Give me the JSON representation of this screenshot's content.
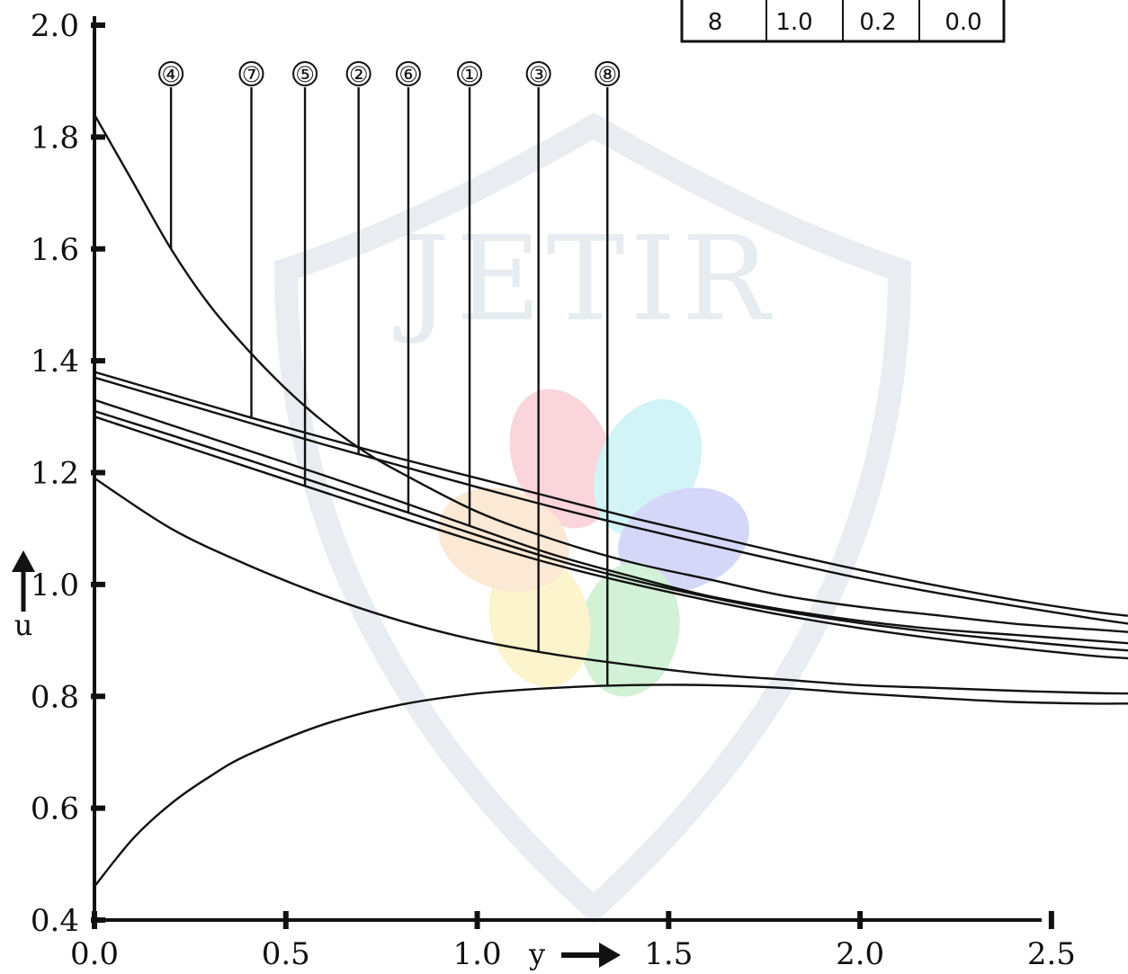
{
  "chart_data": {
    "type": "line",
    "title": "",
    "xlabel": "y",
    "ylabel": "u",
    "xlim": [
      0.0,
      2.7
    ],
    "ylim": [
      0.4,
      2.0
    ],
    "x_ticks": [
      0.0,
      0.5,
      1.0,
      1.5,
      2.0,
      2.5
    ],
    "x_tick_labels": [
      "0.0",
      "0.5",
      "1.0",
      "1.5",
      "2.0",
      "2.5"
    ],
    "y_ticks": [
      0.4,
      0.6,
      0.8,
      1.0,
      1.2,
      1.4,
      1.6,
      1.8,
      2.0
    ],
    "y_tick_labels": [
      "0.4",
      "0.6",
      "0.8",
      "1.0",
      "1.2",
      "1.4",
      "1.6",
      "1.8",
      "2.0"
    ],
    "grid": false,
    "watermark": "JETIR",
    "legend_table": {
      "position": "top-right",
      "visible_row": [
        "8",
        "1.0",
        "0.2",
        "0.0"
      ]
    },
    "series": [
      {
        "label": "①",
        "x": [
          0.0,
          0.2,
          0.4,
          0.6,
          0.8,
          1.0,
          1.2,
          1.4,
          1.6,
          1.8,
          2.0,
          2.2,
          2.4,
          2.6,
          2.7
        ],
        "y": [
          1.33,
          1.285,
          1.24,
          1.195,
          1.148,
          1.1,
          1.053,
          1.015,
          0.98,
          0.955,
          0.935,
          0.92,
          0.91,
          0.9,
          0.895
        ],
        "marker_x": 0.98
      },
      {
        "label": "②",
        "x": [
          0.0,
          0.2,
          0.4,
          0.6,
          0.8,
          1.0,
          1.2,
          1.4,
          1.6,
          1.8,
          2.0,
          2.2,
          2.4,
          2.6,
          2.7
        ],
        "y": [
          1.37,
          1.33,
          1.29,
          1.25,
          1.212,
          1.174,
          1.138,
          1.104,
          1.072,
          1.041,
          1.011,
          0.985,
          0.962,
          0.94,
          0.93
        ],
        "marker_x": 0.69
      },
      {
        "label": "③",
        "x": [
          0.0,
          0.2,
          0.4,
          0.6,
          0.8,
          1.0,
          1.2,
          1.4,
          1.6,
          1.8,
          2.0,
          2.2,
          2.4,
          2.6,
          2.7
        ],
        "y": [
          1.19,
          1.1,
          1.035,
          0.98,
          0.935,
          0.9,
          0.875,
          0.856,
          0.84,
          0.83,
          0.82,
          0.815,
          0.81,
          0.806,
          0.805
        ],
        "marker_x": 1.16
      },
      {
        "label": "④",
        "x": [
          0.0,
          0.1,
          0.2,
          0.3,
          0.4,
          0.5,
          0.6,
          0.7,
          0.8,
          1.0,
          1.2,
          1.4,
          1.6,
          1.8,
          2.0,
          2.2,
          2.4,
          2.6,
          2.7
        ],
        "y": [
          1.84,
          1.72,
          1.6,
          1.5,
          1.42,
          1.35,
          1.29,
          1.24,
          1.2,
          1.13,
          1.08,
          1.04,
          1.01,
          0.98,
          0.96,
          0.945,
          0.93,
          0.92,
          0.915
        ],
        "marker_x": 0.2
      },
      {
        "label": "⑤",
        "x": [
          0.0,
          0.2,
          0.4,
          0.6,
          0.8,
          1.0,
          1.2,
          1.4,
          1.6,
          1.8,
          2.0,
          2.2,
          2.4,
          2.6,
          2.7
        ],
        "y": [
          1.3,
          1.255,
          1.21,
          1.165,
          1.12,
          1.076,
          1.036,
          1.002,
          0.972,
          0.945,
          0.922,
          0.903,
          0.887,
          0.873,
          0.868
        ],
        "marker_x": 0.55
      },
      {
        "label": "⑥",
        "x": [
          0.0,
          0.2,
          0.4,
          0.6,
          0.8,
          1.0,
          1.2,
          1.4,
          1.6,
          1.8,
          2.0,
          2.2,
          2.4,
          2.6,
          2.7
        ],
        "y": [
          1.31,
          1.267,
          1.223,
          1.178,
          1.133,
          1.088,
          1.045,
          1.009,
          0.978,
          0.952,
          0.931,
          0.914,
          0.9,
          0.887,
          0.882
        ],
        "marker_x": 0.82
      },
      {
        "label": "⑦",
        "x": [
          0.0,
          0.2,
          0.4,
          0.6,
          0.8,
          1.0,
          1.2,
          1.4,
          1.6,
          1.8,
          2.0,
          2.2,
          2.4,
          2.6,
          2.7
        ],
        "y": [
          1.38,
          1.34,
          1.3,
          1.262,
          1.225,
          1.19,
          1.155,
          1.12,
          1.088,
          1.056,
          1.026,
          0.998,
          0.973,
          0.952,
          0.944
        ],
        "marker_x": 0.41
      },
      {
        "label": "⑧",
        "x": [
          0.0,
          0.1,
          0.2,
          0.3,
          0.4,
          0.6,
          0.8,
          1.0,
          1.2,
          1.4,
          1.6,
          1.8,
          2.0,
          2.2,
          2.4,
          2.6,
          2.7
        ],
        "y": [
          0.46,
          0.545,
          0.608,
          0.656,
          0.695,
          0.75,
          0.785,
          0.805,
          0.815,
          0.82,
          0.82,
          0.815,
          0.805,
          0.797,
          0.79,
          0.787,
          0.787
        ],
        "marker_x": 1.34
      }
    ]
  }
}
